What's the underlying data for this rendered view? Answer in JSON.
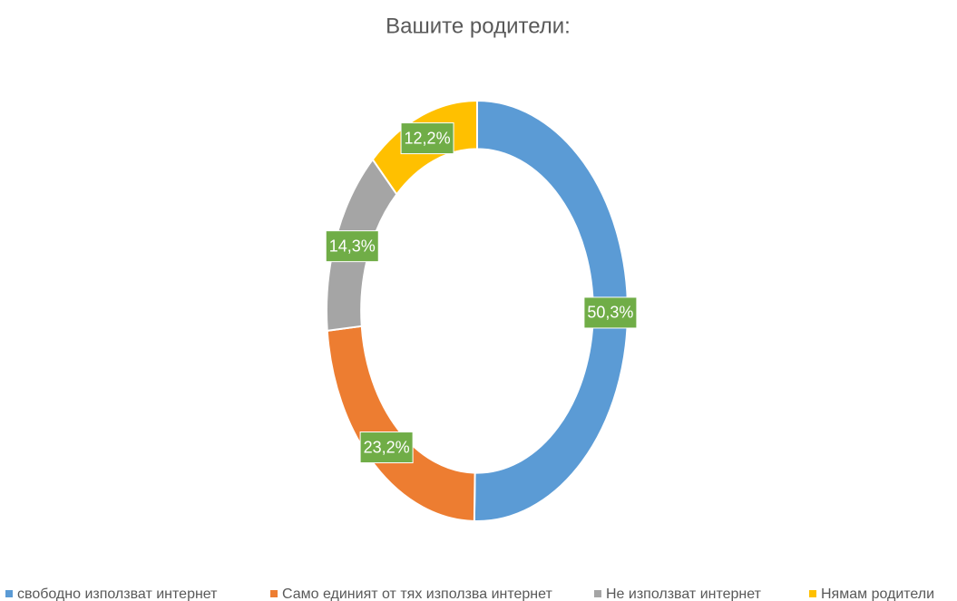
{
  "chart_data": {
    "type": "donut",
    "title": "Вашите  родители:",
    "categories": [
      "свободно използват интернет",
      "Само единият от тях използва интернет",
      "Не  използват интернет",
      "Нямам родители"
    ],
    "values": [
      50.3,
      23.2,
      14.3,
      12.2
    ],
    "value_labels": [
      "50,3%",
      "23,2%",
      "14,3%",
      "12,2%"
    ],
    "colors": [
      "#5b9bd5",
      "#ed7d31",
      "#a5a5a5",
      "#ffc000"
    ],
    "legend": "bottom"
  }
}
